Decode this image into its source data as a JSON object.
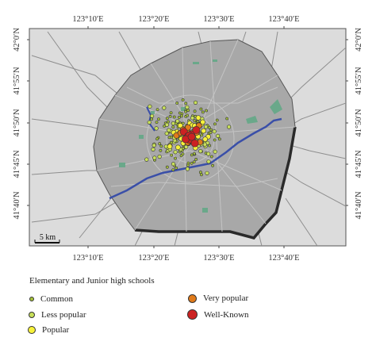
{
  "map": {
    "lon_ticks": [
      "123°10′E",
      "123°20′E",
      "123°30′E",
      "123°40′E"
    ],
    "lat_ticks": [
      "42°0′N",
      "41°55′N",
      "41°50′N",
      "41°45′N",
      "41°40′N"
    ],
    "scale_label": "5 km",
    "colors": {
      "background": "#dcdcdc",
      "urban_area": "#a8a8a8",
      "urban_edge": "#2a2a2a",
      "river": "#3a4fa8",
      "green_space": "#6aa88a",
      "roads": "#8e8e8e"
    }
  },
  "legend": {
    "title": "Elementary and Junior high schools",
    "items": [
      {
        "label": "Common",
        "color": "#a6c23a"
      },
      {
        "label": "Less popular",
        "color": "#c8e05a"
      },
      {
        "label": "Popular",
        "color": "#f7f23a"
      },
      {
        "label": "Very popular",
        "color": "#e07a1a"
      },
      {
        "label": "Well-Known",
        "color": "#cc2222"
      }
    ]
  }
}
